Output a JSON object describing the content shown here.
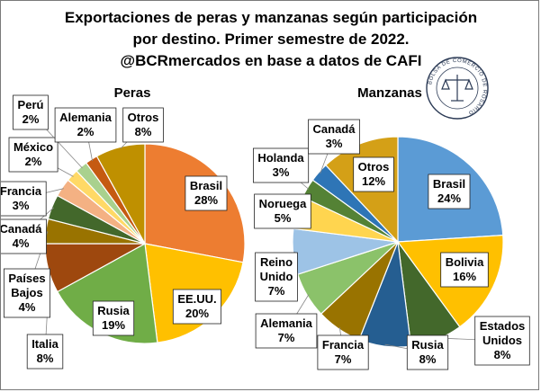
{
  "title": {
    "line1": "Exportaciones de peras y manzanas  según participación",
    "line2": "por destino. Primer semestre de 2022.",
    "line3": "@BCRmercados en base a datos de CAFI"
  },
  "seal_text": "BOLSA DE COMERCIO DE ROSARIO",
  "chart_data": [
    {
      "type": "pie",
      "title": "Peras",
      "slices": [
        {
          "label": "Brasil",
          "value": 28,
          "value_label": "28%",
          "color": "#ED7D31"
        },
        {
          "label": "EE.UU.",
          "value": 20,
          "value_label": "20%",
          "color": "#FFC000"
        },
        {
          "label": "Rusia",
          "value": 19,
          "value_label": "19%",
          "color": "#70AD47"
        },
        {
          "label": "Italia",
          "value": 8,
          "value_label": "8%",
          "color": "#9E480E"
        },
        {
          "label": "Países Bajos",
          "value": 4,
          "value_label": "4%",
          "color": "#997300"
        },
        {
          "label": "Canadá",
          "value": 4,
          "value_label": "4%",
          "color": "#43682B"
        },
        {
          "label": "Francia",
          "value": 3,
          "value_label": "3%",
          "color": "#F4B183"
        },
        {
          "label": "México",
          "value": 2,
          "value_label": "2%",
          "color": "#FFD966"
        },
        {
          "label": "Perú",
          "value": 2,
          "value_label": "2%",
          "color": "#A9D18E"
        },
        {
          "label": "Alemania",
          "value": 2,
          "value_label": "2%",
          "color": "#C55A11"
        },
        {
          "label": "Otros",
          "value": 8,
          "value_label": "8%",
          "color": "#BF9000"
        }
      ]
    },
    {
      "type": "pie",
      "title": "Manzanas",
      "slices": [
        {
          "label": "Brasil",
          "value": 24,
          "value_label": "24%",
          "color": "#5B9BD5"
        },
        {
          "label": "Bolivia",
          "value": 16,
          "value_label": "16%",
          "color": "#FFC000"
        },
        {
          "label": "Estados Unidos",
          "value": 8,
          "value_label": "8%",
          "color": "#43682B"
        },
        {
          "label": "Rusia",
          "value": 8,
          "value_label": "8%",
          "color": "#255E91"
        },
        {
          "label": "Francia",
          "value": 7,
          "value_label": "7%",
          "color": "#997300"
        },
        {
          "label": "Alemania",
          "value": 7,
          "value_label": "7%",
          "color": "#8BC26A"
        },
        {
          "label": "Reino Unido",
          "value": 7,
          "value_label": "7%",
          "color": "#9DC3E6"
        },
        {
          "label": "Noruega",
          "value": 5,
          "value_label": "5%",
          "color": "#FFD54F"
        },
        {
          "label": "Holanda",
          "value": 3,
          "value_label": "3%",
          "color": "#548235"
        },
        {
          "label": "Canadá",
          "value": 3,
          "value_label": "3%",
          "color": "#2E75B6"
        },
        {
          "label": "Otros",
          "value": 12,
          "value_label": "12%",
          "color": "#D4A017"
        }
      ]
    }
  ]
}
